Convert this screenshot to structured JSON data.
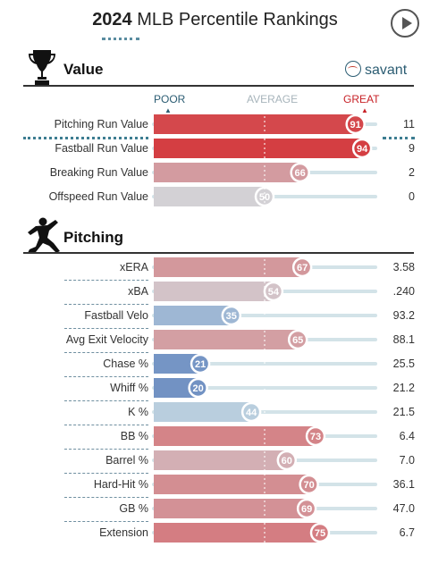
{
  "header": {
    "title_year": "2024",
    "title_rest": " MLB Percentile Rankings",
    "play_icon": "play-icon"
  },
  "brand": {
    "text": "savant",
    "icon": "baseball-icon"
  },
  "scale": {
    "poor": "POOR",
    "average": "AVERAGE",
    "great": "GREAT"
  },
  "colors": {
    "great": "#d42a2e",
    "poor": "#3661ad",
    "average": "#b3b3b3",
    "track": "#d3e3e8"
  },
  "chart_data": {
    "type": "bar",
    "xlim": [
      0,
      100
    ],
    "sections": [
      {
        "title": "Value",
        "icon": "trophy-icon",
        "rows": [
          {
            "label": "Pitching Run Value",
            "percentile": 91,
            "value": "11"
          },
          {
            "label": "Fastball Run Value",
            "percentile": 94,
            "value": "9"
          },
          {
            "label": "Breaking Run Value",
            "percentile": 66,
            "value": "2"
          },
          {
            "label": "Offspeed Run Value",
            "percentile": 50,
            "value": "0"
          }
        ]
      },
      {
        "title": "Pitching",
        "icon": "pitcher-icon",
        "rows": [
          {
            "label": "xERA",
            "percentile": 67,
            "value": "3.58"
          },
          {
            "label": "xBA",
            "percentile": 54,
            "value": ".240"
          },
          {
            "label": "Fastball Velo",
            "percentile": 35,
            "value": "93.2"
          },
          {
            "label": "Avg Exit Velocity",
            "percentile": 65,
            "value": "88.1"
          },
          {
            "label": "Chase %",
            "percentile": 21,
            "value": "25.5"
          },
          {
            "label": "Whiff %",
            "percentile": 20,
            "value": "21.2"
          },
          {
            "label": "K %",
            "percentile": 44,
            "value": "21.5"
          },
          {
            "label": "BB %",
            "percentile": 73,
            "value": "6.4"
          },
          {
            "label": "Barrel %",
            "percentile": 60,
            "value": "7.0"
          },
          {
            "label": "Hard-Hit %",
            "percentile": 70,
            "value": "36.1"
          },
          {
            "label": "GB %",
            "percentile": 69,
            "value": "47.0"
          },
          {
            "label": "Extension",
            "percentile": 75,
            "value": "6.7"
          }
        ]
      }
    ]
  }
}
